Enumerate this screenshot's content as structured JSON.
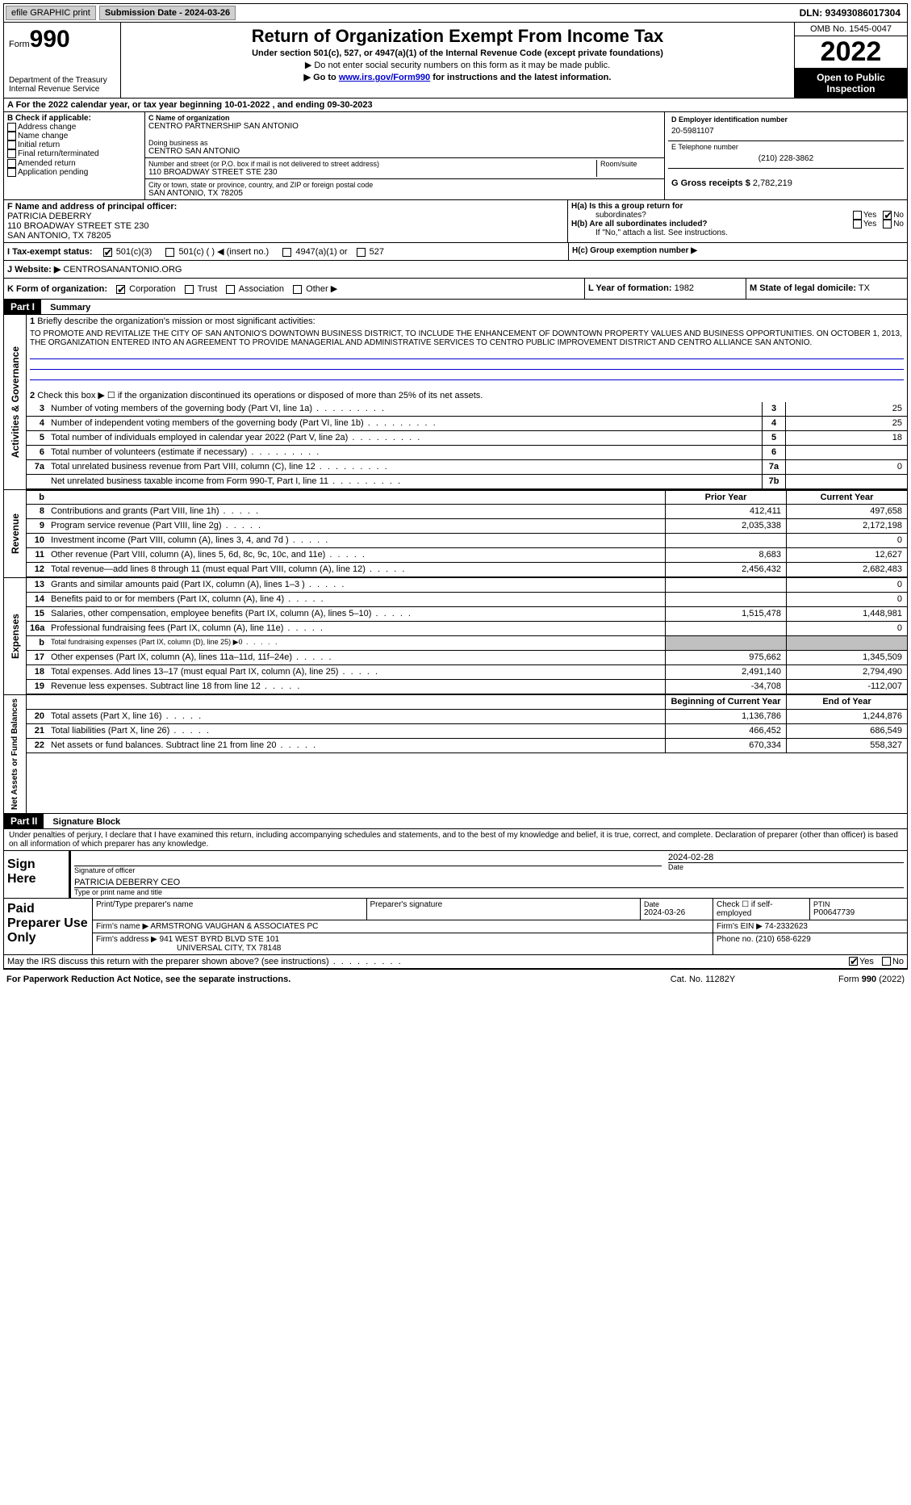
{
  "topbar": {
    "efile": "efile GRAPHIC print",
    "submission": "Submission Date - 2024-03-26",
    "dln": "DLN: 93493086017304"
  },
  "header": {
    "form_prefix": "Form",
    "form_num": "990",
    "dept": "Department of the Treasury",
    "irs": "Internal Revenue Service",
    "title": "Return of Organization Exempt From Income Tax",
    "subtitle": "Under section 501(c), 527, or 4947(a)(1) of the Internal Revenue Code (except private foundations)",
    "note1": "▶ Do not enter social security numbers on this form as it may be made public.",
    "note2_pre": "▶ Go to ",
    "note2_link": "www.irs.gov/Form990",
    "note2_post": " for instructions and the latest information.",
    "omb": "OMB No. 1545-0047",
    "year": "2022",
    "inspection": "Open to Public Inspection"
  },
  "period": {
    "text": "A For the 2022 calendar year, or tax year beginning 10-01-2022     , and ending 09-30-2023"
  },
  "section_b": {
    "label": "B Check if applicable:",
    "opts": [
      "Address change",
      "Name change",
      "Initial return",
      "Final return/terminated",
      "Amended return",
      "Application pending"
    ]
  },
  "section_c": {
    "name_label": "C Name of organization",
    "name": "CENTRO PARTNERSHIP SAN ANTONIO",
    "dba_label": "Doing business as",
    "dba": "CENTRO SAN ANTONIO",
    "street_label": "Number and street (or P.O. box if mail is not delivered to street address)",
    "street": "110 BROADWAY STREET STE 230",
    "room_label": "Room/suite",
    "city_label": "City or town, state or province, country, and ZIP or foreign postal code",
    "city": "SAN ANTONIO, TX  78205"
  },
  "section_d": {
    "ein_label": "D Employer identification number",
    "ein": "20-5981107",
    "phone_label": "E Telephone number",
    "phone": "(210) 228-3862",
    "gross_label": "G Gross receipts $",
    "gross": "2,782,219"
  },
  "section_f": {
    "label": "F  Name and address of principal officer:",
    "name": "PATRICIA DEBERRY",
    "addr1": "110 BROADWAY STREET STE 230",
    "addr2": "SAN ANTONIO, TX  78205"
  },
  "section_h": {
    "ha": "H(a)  Is this a group return for",
    "ha2": "subordinates?",
    "hb": "H(b)  Are all subordinates included?",
    "hb_note": "If \"No,\" attach a list. See instructions.",
    "hc": "H(c)  Group exemption number ▶",
    "yes": "Yes",
    "no": "No"
  },
  "tax_status": {
    "label": "I   Tax-exempt status:",
    "opt1": "501(c)(3)",
    "opt2": "501(c) (  ) ◀ (insert no.)",
    "opt3": "4947(a)(1) or",
    "opt4": "527"
  },
  "website": {
    "label": "J   Website: ▶",
    "val": "CENTROSANANTONIO.ORG"
  },
  "section_k": {
    "label": "K Form of organization:",
    "opts": [
      "Corporation",
      "Trust",
      "Association",
      "Other ▶"
    ]
  },
  "section_l": {
    "label": "L Year of formation:",
    "val": "1982"
  },
  "section_m": {
    "label": "M State of legal domicile:",
    "val": "TX"
  },
  "part1": {
    "header": "Part I",
    "title": "Summary",
    "line1_label": "Briefly describe the organization's mission or most significant activities:",
    "mission": "TO PROMOTE AND REVITALIZE THE CITY OF SAN ANTONIO'S DOWNTOWN BUSINESS DISTRICT, TO INCLUDE THE ENHANCEMENT OF DOWNTOWN PROPERTY VALUES AND BUSINESS OPPORTUNITIES. ON OCTOBER 1, 2013, THE ORGANIZATION ENTERED INTO AN AGREEMENT TO PROVIDE MANAGERIAL AND ADMINISTRATIVE SERVICES TO CENTRO PUBLIC IMPROVEMENT DISTRICT AND CENTRO ALLIANCE SAN ANTONIO.",
    "line2": "Check this box ▶ ☐  if the organization discontinued its operations or disposed of more than 25% of its net assets.",
    "vert_activities": "Activities & Governance",
    "vert_revenue": "Revenue",
    "vert_expenses": "Expenses",
    "vert_netassets": "Net Assets or Fund Balances",
    "lines_gov": [
      {
        "n": "3",
        "t": "Number of voting members of the governing body (Part VI, line 1a)",
        "box": "3",
        "v": "25"
      },
      {
        "n": "4",
        "t": "Number of independent voting members of the governing body (Part VI, line 1b)",
        "box": "4",
        "v": "25"
      },
      {
        "n": "5",
        "t": "Total number of individuals employed in calendar year 2022 (Part V, line 2a)",
        "box": "5",
        "v": "18"
      },
      {
        "n": "6",
        "t": "Total number of volunteers (estimate if necessary)",
        "box": "6",
        "v": ""
      },
      {
        "n": "7a",
        "t": "Total unrelated business revenue from Part VIII, column (C), line 12",
        "box": "7a",
        "v": "0"
      },
      {
        "n": "",
        "t": "Net unrelated business taxable income from Form 990-T, Part I, line 11",
        "box": "7b",
        "v": ""
      }
    ],
    "col_prior": "Prior Year",
    "col_current": "Current Year",
    "col_bocy": "Beginning of Current Year",
    "col_eoy": "End of Year",
    "lines_rev": [
      {
        "n": "8",
        "t": "Contributions and grants (Part VIII, line 1h)",
        "p": "412,411",
        "c": "497,658"
      },
      {
        "n": "9",
        "t": "Program service revenue (Part VIII, line 2g)",
        "p": "2,035,338",
        "c": "2,172,198"
      },
      {
        "n": "10",
        "t": "Investment income (Part VIII, column (A), lines 3, 4, and 7d )",
        "p": "",
        "c": "0"
      },
      {
        "n": "11",
        "t": "Other revenue (Part VIII, column (A), lines 5, 6d, 8c, 9c, 10c, and 11e)",
        "p": "8,683",
        "c": "12,627"
      },
      {
        "n": "12",
        "t": "Total revenue—add lines 8 through 11 (must equal Part VIII, column (A), line 12)",
        "p": "2,456,432",
        "c": "2,682,483"
      }
    ],
    "lines_exp": [
      {
        "n": "13",
        "t": "Grants and similar amounts paid (Part IX, column (A), lines 1–3 )",
        "p": "",
        "c": "0"
      },
      {
        "n": "14",
        "t": "Benefits paid to or for members (Part IX, column (A), line 4)",
        "p": "",
        "c": "0"
      },
      {
        "n": "15",
        "t": "Salaries, other compensation, employee benefits (Part IX, column (A), lines 5–10)",
        "p": "1,515,478",
        "c": "1,448,981"
      },
      {
        "n": "16a",
        "t": "Professional fundraising fees (Part IX, column (A), line 11e)",
        "p": "",
        "c": "0"
      },
      {
        "n": "b",
        "t": "Total fundraising expenses (Part IX, column (D), line 25) ▶0",
        "p": "gray",
        "c": "gray"
      },
      {
        "n": "17",
        "t": "Other expenses (Part IX, column (A), lines 11a–11d, 11f–24e)",
        "p": "975,662",
        "c": "1,345,509"
      },
      {
        "n": "18",
        "t": "Total expenses. Add lines 13–17 (must equal Part IX, column (A), line 25)",
        "p": "2,491,140",
        "c": "2,794,490"
      },
      {
        "n": "19",
        "t": "Revenue less expenses. Subtract line 18 from line 12",
        "p": "-34,708",
        "c": "-112,007"
      }
    ],
    "lines_net": [
      {
        "n": "20",
        "t": "Total assets (Part X, line 16)",
        "p": "1,136,786",
        "c": "1,244,876"
      },
      {
        "n": "21",
        "t": "Total liabilities (Part X, line 26)",
        "p": "466,452",
        "c": "686,549"
      },
      {
        "n": "22",
        "t": "Net assets or fund balances. Subtract line 21 from line 20",
        "p": "670,334",
        "c": "558,327"
      }
    ]
  },
  "part2": {
    "header": "Part II",
    "title": "Signature Block",
    "declaration": "Under penalties of perjury, I declare that I have examined this return, including accompanying schedules and statements, and to the best of my knowledge and belief, it is true, correct, and complete. Declaration of preparer (other than officer) is based on all information of which preparer has any knowledge."
  },
  "sign": {
    "label": "Sign Here",
    "sig_officer": "Signature of officer",
    "date_label": "Date",
    "date": "2024-02-28",
    "name": "PATRICIA DEBERRY CEO",
    "name_label": "Type or print name and title"
  },
  "paid": {
    "label": "Paid Preparer Use Only",
    "col1": "Print/Type preparer's name",
    "col2": "Preparer's signature",
    "col3": "Date",
    "date": "2024-03-26",
    "check_label": "Check ☐  if self-employed",
    "ptin_label": "PTIN",
    "ptin": "P00647739",
    "firm_label": "Firm's name      ▶",
    "firm": "ARMSTRONG VAUGHAN & ASSOCIATES PC",
    "ein_label": "Firm's EIN ▶",
    "ein": "74-2332623",
    "addr_label": "Firm's address ▶",
    "addr1": "941 WEST BYRD BLVD STE 101",
    "addr2": "UNIVERSAL CITY, TX  78148",
    "phone_label": "Phone no.",
    "phone": "(210) 658-6229"
  },
  "footer": {
    "discuss": "May the IRS discuss this return with the preparer shown above? (see instructions)",
    "yes": "Yes",
    "no": "No",
    "paperwork": "For Paperwork Reduction Act Notice, see the separate instructions.",
    "cat": "Cat. No. 11282Y",
    "form": "Form 990 (2022)"
  }
}
